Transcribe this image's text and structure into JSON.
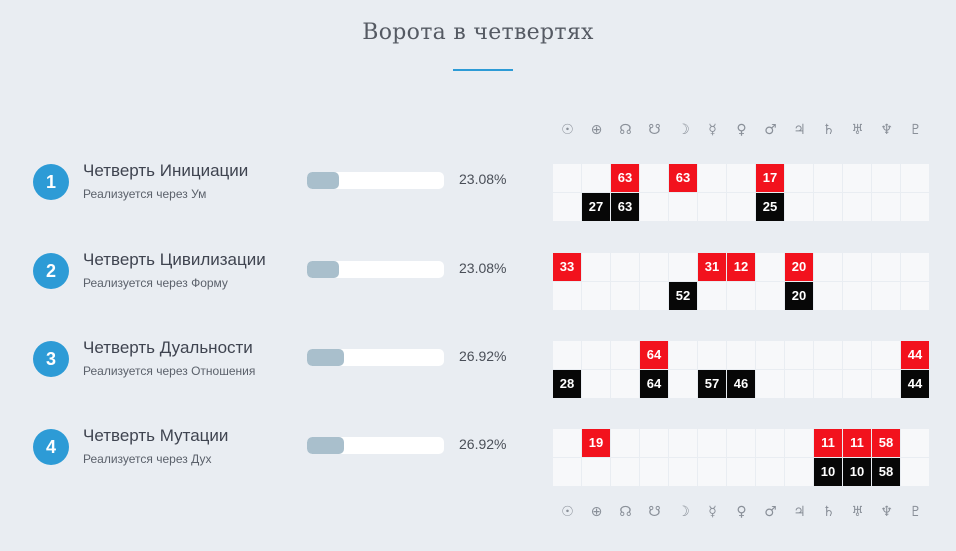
{
  "title": "Ворота в четвертях",
  "symbols": [
    "☉",
    "⊕",
    "☊",
    "☋",
    "☽",
    "☿",
    "♀",
    "♂",
    "♃",
    "♄",
    "♅",
    "♆",
    "♇"
  ],
  "colors": {
    "accent": "#2d9bd6",
    "red": "#f2121d",
    "black": "#070707",
    "bar_fill": "#a9bfcc"
  },
  "quarters": [
    {
      "number": "1",
      "name": "Четверть Инициации",
      "subtitle": "Реализуется через Ум",
      "percent_label": "23.08%",
      "percent": 23.08,
      "red": [
        "",
        "",
        "63",
        "",
        "63",
        "",
        "",
        "17",
        "",
        "",
        "",
        "",
        ""
      ],
      "black": [
        "",
        "27",
        "63",
        "",
        "",
        "",
        "",
        "25",
        "",
        "",
        "",
        "",
        ""
      ]
    },
    {
      "number": "2",
      "name": "Четверть Цивилизации",
      "subtitle": "Реализуется через Форму",
      "percent_label": "23.08%",
      "percent": 23.08,
      "red": [
        "33",
        "",
        "",
        "",
        "",
        "31",
        "12",
        "",
        "20",
        "",
        "",
        "",
        ""
      ],
      "black": [
        "",
        "",
        "",
        "",
        "52",
        "",
        "",
        "",
        "20",
        "",
        "",
        "",
        ""
      ]
    },
    {
      "number": "3",
      "name": "Четверть Дуальности",
      "subtitle": "Реализуется через Отношения",
      "percent_label": "26.92%",
      "percent": 26.92,
      "red": [
        "",
        "",
        "",
        "64",
        "",
        "",
        "",
        "",
        "",
        "",
        "",
        "",
        "44"
      ],
      "black": [
        "28",
        "",
        "",
        "64",
        "",
        "57",
        "46",
        "",
        "",
        "",
        "",
        "",
        "44"
      ]
    },
    {
      "number": "4",
      "name": "Четверть Мутации",
      "subtitle": "Реализуется через Дух",
      "percent_label": "26.92%",
      "percent": 26.92,
      "red": [
        "",
        "19",
        "",
        "",
        "",
        "",
        "",
        "",
        "",
        "11",
        "11",
        "58",
        ""
      ],
      "black": [
        "",
        "",
        "",
        "",
        "",
        "",
        "",
        "",
        "",
        "10",
        "10",
        "58",
        ""
      ]
    }
  ]
}
